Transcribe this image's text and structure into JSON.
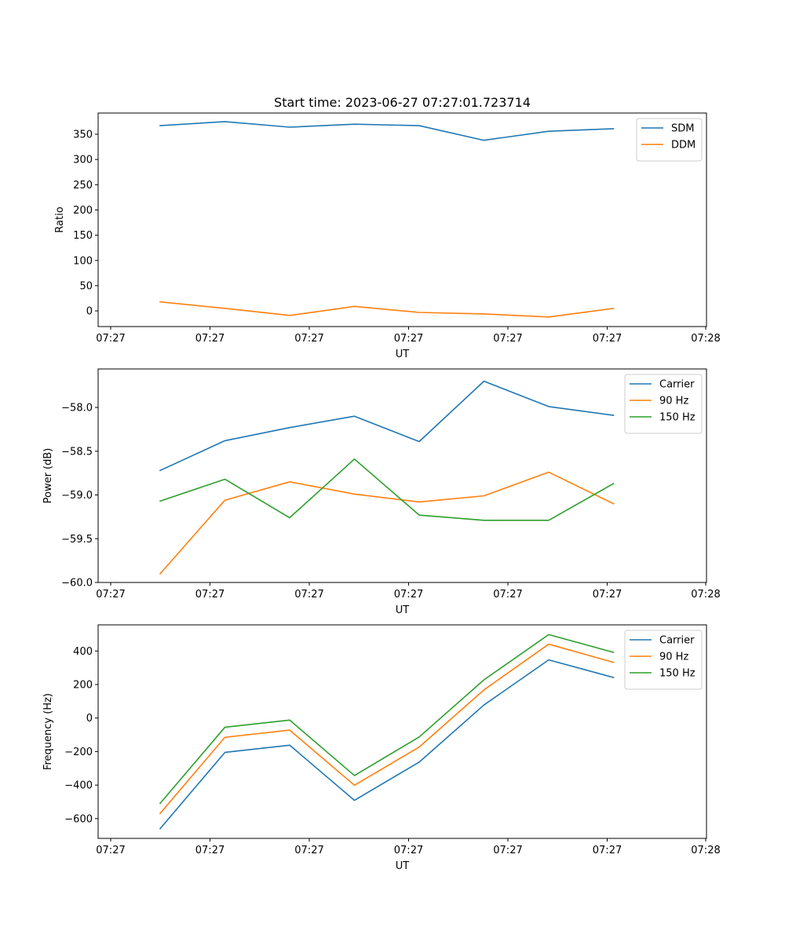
{
  "chart_data": [
    {
      "type": "line",
      "title": "Start time: 2023-06-27 07:27:01.723714",
      "xlabel": "UT",
      "ylabel": "Ratio",
      "x_tick_labels": [
        "07:27",
        "07:27",
        "07:27",
        "07:27",
        "07:27",
        "07:27",
        "07:28"
      ],
      "y_ticks": [
        0,
        50,
        100,
        150,
        200,
        250,
        300,
        350
      ],
      "ylim": [
        -31,
        392
      ],
      "legend_position": "top-right",
      "series": [
        {
          "name": "SDM",
          "color": "#1f77b4",
          "values": [
            367,
            375,
            364,
            370,
            367,
            338,
            356,
            361
          ]
        },
        {
          "name": "DDM",
          "color": "#ff7f0e",
          "values": [
            18,
            5,
            -9,
            9,
            -3,
            -6,
            -12,
            5
          ]
        }
      ]
    },
    {
      "type": "line",
      "title": "",
      "xlabel": "UT",
      "ylabel": "Power (dB)",
      "x_tick_labels": [
        "07:27",
        "07:27",
        "07:27",
        "07:27",
        "07:27",
        "07:27",
        "07:28"
      ],
      "y_ticks": [
        -60.0,
        -59.5,
        -59.0,
        -58.5,
        -58.0
      ],
      "y_tick_labels": [
        "−60.0",
        "−59.5",
        "−59.0",
        "−58.5",
        "−58.0"
      ],
      "ylim": [
        -60.0,
        -57.56
      ],
      "legend_position": "top-right",
      "series": [
        {
          "name": "Carrier",
          "color": "#1f77b4",
          "values": [
            -58.72,
            -58.38,
            -58.23,
            -58.1,
            -58.39,
            -57.7,
            -57.99,
            -58.09
          ]
        },
        {
          "name": "90 Hz",
          "color": "#ff7f0e",
          "values": [
            -59.9,
            -59.06,
            -58.85,
            -58.99,
            -59.08,
            -59.01,
            -58.74,
            -59.1
          ]
        },
        {
          "name": "150 Hz",
          "color": "#2ca02c",
          "values": [
            -59.07,
            -58.82,
            -59.26,
            -58.59,
            -59.23,
            -59.29,
            -59.29,
            -58.87
          ]
        }
      ]
    },
    {
      "type": "line",
      "title": "",
      "xlabel": "UT",
      "ylabel": "Frequency (Hz)",
      "x_tick_labels": [
        "07:27",
        "07:27",
        "07:27",
        "07:27",
        "07:27",
        "07:27",
        "07:28"
      ],
      "y_ticks": [
        -600,
        -400,
        -200,
        0,
        200,
        400
      ],
      "y_tick_labels": [
        "−600",
        "−400",
        "−200",
        "0",
        "200",
        "400"
      ],
      "ylim": [
        -718,
        556
      ],
      "legend_position": "top-right",
      "series": [
        {
          "name": "Carrier",
          "color": "#1f77b4",
          "values": [
            -660,
            -205,
            -162,
            -491,
            -263,
            78,
            347,
            242
          ]
        },
        {
          "name": "90 Hz",
          "color": "#ff7f0e",
          "values": [
            -569,
            -115,
            -72,
            -401,
            -173,
            168,
            441,
            332
          ]
        },
        {
          "name": "150 Hz",
          "color": "#2ca02c",
          "values": [
            -509,
            -55,
            -12,
            -343,
            -113,
            228,
            498,
            392
          ]
        }
      ]
    }
  ]
}
